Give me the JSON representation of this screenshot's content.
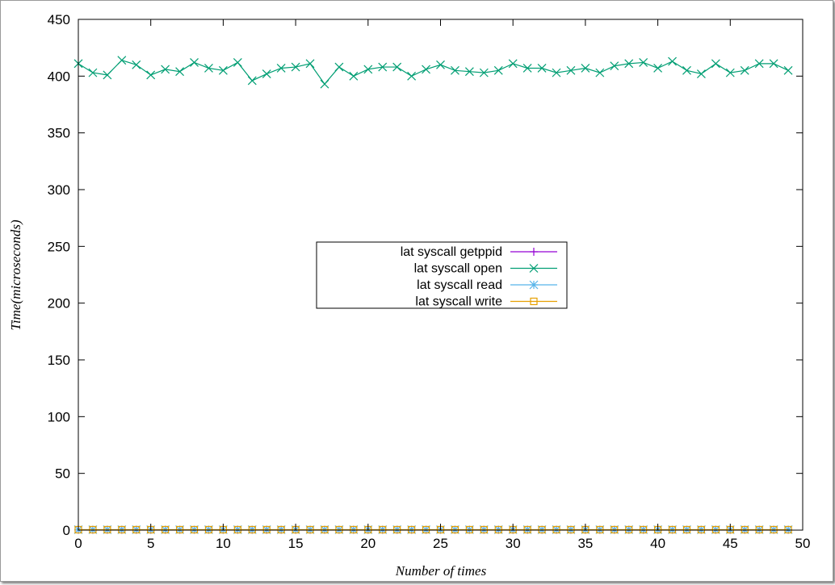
{
  "chart_data": {
    "type": "line",
    "xlabel": "Number of times",
    "ylabel": "Time(microseconds)",
    "xlim": [
      0,
      50
    ],
    "ylim": [
      0,
      450
    ],
    "x_ticks": [
      0,
      5,
      10,
      15,
      20,
      25,
      30,
      35,
      40,
      45,
      50
    ],
    "y_ticks": [
      0,
      50,
      100,
      150,
      200,
      250,
      300,
      350,
      400,
      450
    ],
    "grid": false,
    "legend_position": "center",
    "x": [
      0,
      1,
      2,
      3,
      4,
      5,
      6,
      7,
      8,
      9,
      10,
      11,
      12,
      13,
      14,
      15,
      16,
      17,
      18,
      19,
      20,
      21,
      22,
      23,
      24,
      25,
      26,
      27,
      28,
      29,
      30,
      31,
      32,
      33,
      34,
      35,
      36,
      37,
      38,
      39,
      40,
      41,
      42,
      43,
      44,
      45,
      46,
      47,
      48,
      49
    ],
    "series": [
      {
        "name": "lat syscall getppid",
        "color": "#9400d3",
        "marker": "plus",
        "values": [
          0.3,
          0.3,
          0.3,
          0.3,
          0.3,
          0.3,
          0.3,
          0.3,
          0.3,
          0.3,
          0.3,
          0.3,
          0.3,
          0.3,
          0.3,
          0.3,
          0.3,
          0.3,
          0.3,
          0.3,
          0.3,
          0.3,
          0.3,
          0.3,
          0.3,
          0.3,
          0.3,
          0.3,
          0.3,
          0.3,
          0.3,
          0.3,
          0.3,
          0.3,
          0.3,
          0.3,
          0.3,
          0.3,
          0.3,
          0.3,
          0.3,
          0.3,
          0.3,
          0.3,
          0.3,
          0.3,
          0.3,
          0.3,
          0.3,
          0.3
        ]
      },
      {
        "name": "lat syscall open",
        "color": "#009e73",
        "marker": "cross",
        "values": [
          411,
          403,
          401,
          414,
          410,
          401,
          406,
          404,
          412,
          407,
          405,
          412,
          396,
          402,
          407,
          408,
          411,
          393,
          408,
          400,
          406,
          408,
          408,
          400,
          406,
          410,
          405,
          404,
          403,
          405,
          411,
          407,
          407,
          403,
          405,
          407,
          403,
          409,
          411,
          412,
          407,
          413,
          405,
          402,
          411,
          403,
          405,
          411,
          411,
          405
        ]
      },
      {
        "name": "lat syscall read",
        "color": "#56b4e9",
        "marker": "star",
        "values": [
          0.4,
          0.4,
          0.4,
          0.4,
          0.4,
          0.4,
          0.4,
          0.4,
          0.4,
          0.4,
          0.4,
          0.4,
          0.4,
          0.4,
          0.4,
          0.4,
          0.4,
          0.4,
          0.4,
          0.4,
          0.4,
          0.4,
          0.4,
          0.4,
          0.4,
          0.4,
          0.4,
          0.4,
          0.4,
          0.4,
          0.4,
          0.4,
          0.4,
          0.4,
          0.4,
          0.4,
          0.4,
          0.4,
          0.4,
          0.4,
          0.4,
          0.4,
          0.4,
          0.4,
          0.4,
          0.4,
          0.4,
          0.4,
          0.4,
          0.4
        ]
      },
      {
        "name": "lat syscall write",
        "color": "#e69f00",
        "marker": "square",
        "values": [
          0.4,
          0.4,
          0.4,
          0.4,
          0.4,
          0.4,
          0.4,
          0.4,
          0.4,
          0.4,
          0.4,
          0.4,
          0.4,
          0.4,
          0.4,
          0.4,
          0.4,
          0.4,
          0.4,
          0.4,
          0.4,
          0.4,
          0.4,
          0.4,
          0.4,
          0.4,
          0.4,
          0.4,
          0.4,
          0.4,
          0.4,
          0.4,
          0.4,
          0.4,
          0.4,
          0.4,
          0.4,
          0.4,
          0.4,
          0.4,
          0.4,
          0.4,
          0.4,
          0.4,
          0.4,
          0.4,
          0.4,
          0.4,
          0.4,
          0.4
        ]
      }
    ]
  }
}
